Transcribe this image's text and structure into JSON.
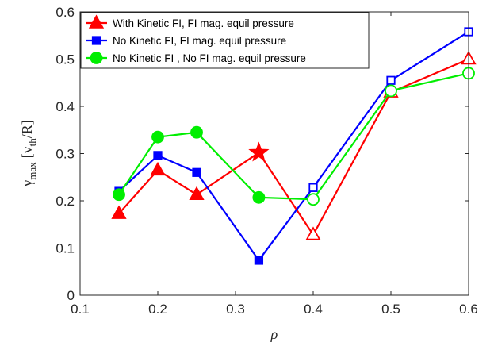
{
  "chart_data": {
    "type": "line",
    "xlabel": "ρ",
    "ylabel_parts": {
      "main": "γ",
      "sub_max": "max",
      "bracket_open": "[v",
      "sub_th": "th",
      "tail": "/R]"
    },
    "xlim": [
      0.1,
      0.6
    ],
    "ylim": [
      0,
      0.6
    ],
    "x_ticks": [
      "0.1",
      "0.2",
      "0.3",
      "0.4",
      "0.5",
      "0.6"
    ],
    "y_ticks": [
      "0",
      "0.1",
      "0.2",
      "0.3",
      "0.4",
      "0.5",
      "0.6"
    ],
    "grid": false,
    "legend_position": "top-left",
    "series": [
      {
        "name": "With Kinetic FI, FI mag. equil pressure",
        "color": "#ff0000",
        "marker": "triangle",
        "points": [
          {
            "x": 0.15,
            "y": 0.173,
            "marker": "triangle",
            "filled": true
          },
          {
            "x": 0.2,
            "y": 0.265,
            "marker": "triangle",
            "filled": true
          },
          {
            "x": 0.25,
            "y": 0.213,
            "marker": "triangle",
            "filled": true
          },
          {
            "x": 0.33,
            "y": 0.302,
            "marker": "star",
            "filled": true
          },
          {
            "x": 0.4,
            "y": 0.128,
            "marker": "triangle",
            "filled": false
          },
          {
            "x": 0.5,
            "y": 0.43,
            "marker": "triangle",
            "filled": false
          },
          {
            "x": 0.6,
            "y": 0.5,
            "marker": "triangle",
            "filled": false
          }
        ]
      },
      {
        "name": "No Kinetic FI, FI mag. equil pressure",
        "color": "#0000ff",
        "marker": "square",
        "points": [
          {
            "x": 0.15,
            "y": 0.22,
            "marker": "square",
            "filled": true
          },
          {
            "x": 0.2,
            "y": 0.296,
            "marker": "square",
            "filled": true
          },
          {
            "x": 0.25,
            "y": 0.26,
            "marker": "square",
            "filled": true
          },
          {
            "x": 0.33,
            "y": 0.074,
            "marker": "square",
            "filled": true
          },
          {
            "x": 0.4,
            "y": 0.228,
            "marker": "square",
            "filled": false
          },
          {
            "x": 0.5,
            "y": 0.455,
            "marker": "square",
            "filled": false
          },
          {
            "x": 0.6,
            "y": 0.558,
            "marker": "square",
            "filled": false
          }
        ]
      },
      {
        "name": "No Kinetic FI , No FI mag. equil pressure",
        "color": "#00ee00",
        "marker": "circle",
        "points": [
          {
            "x": 0.15,
            "y": 0.213,
            "marker": "circle",
            "filled": true
          },
          {
            "x": 0.2,
            "y": 0.335,
            "marker": "circle",
            "filled": true
          },
          {
            "x": 0.25,
            "y": 0.345,
            "marker": "circle",
            "filled": true
          },
          {
            "x": 0.33,
            "y": 0.207,
            "marker": "circle",
            "filled": true
          },
          {
            "x": 0.4,
            "y": 0.203,
            "marker": "circle",
            "filled": false
          },
          {
            "x": 0.5,
            "y": 0.433,
            "marker": "circle",
            "filled": false
          },
          {
            "x": 0.6,
            "y": 0.47,
            "marker": "circle",
            "filled": false
          }
        ]
      }
    ]
  }
}
